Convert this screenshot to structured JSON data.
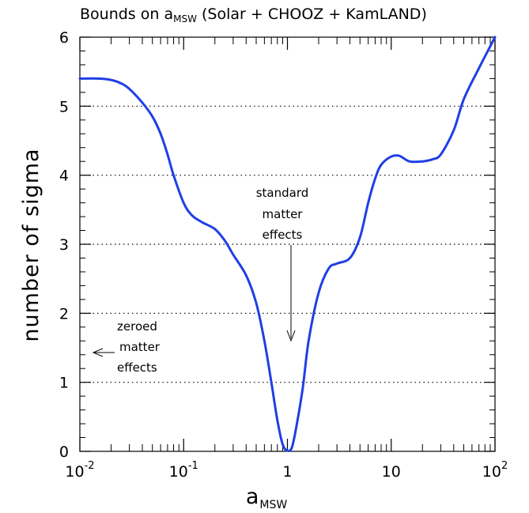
{
  "chart_data": {
    "type": "line",
    "title_prefix": "Bounds on ",
    "title_symbol": "a",
    "title_symbol_sub": "MSW",
    "title_suffix": " (Solar + CHOOZ + KamLAND)",
    "xlabel_main": "a",
    "xlabel_sub": "MSW",
    "ylabel": "number of sigma",
    "x_scale": "log",
    "xlim": [
      0.01,
      100
    ],
    "ylim": [
      0,
      6
    ],
    "x_ticks": [
      {
        "value": 0.01,
        "base": "10",
        "exp": "-2"
      },
      {
        "value": 0.1,
        "base": "10",
        "exp": "-1"
      },
      {
        "value": 1,
        "base": "1",
        "exp": ""
      },
      {
        "value": 10,
        "base": "10",
        "exp": ""
      },
      {
        "value": 100,
        "base": "10",
        "exp": "2"
      }
    ],
    "y_ticks": [
      0,
      1,
      2,
      3,
      4,
      5,
      6
    ],
    "grid": "horizontal dotted at 1,2,3,4,5",
    "series": [
      {
        "color": "#1f3fe6",
        "x": [
          0.01,
          0.015,
          0.02,
          0.025,
          0.03,
          0.04,
          0.05,
          0.06,
          0.07,
          0.08,
          0.1,
          0.12,
          0.15,
          0.2,
          0.25,
          0.3,
          0.4,
          0.5,
          0.6,
          0.7,
          0.8,
          0.9,
          1.0,
          1.1,
          1.2,
          1.4,
          1.6,
          2.0,
          2.5,
          3.0,
          4.0,
          5.0,
          6.0,
          7.0,
          8.0,
          10.0,
          12.0,
          15.0,
          20.0,
          25.0,
          30.0,
          40.0,
          50.0,
          70.0,
          100.0
        ],
        "y": [
          5.4,
          5.4,
          5.38,
          5.33,
          5.25,
          5.05,
          4.85,
          4.6,
          4.3,
          4.0,
          3.6,
          3.42,
          3.32,
          3.22,
          3.05,
          2.85,
          2.55,
          2.15,
          1.6,
          1.0,
          0.45,
          0.1,
          0.01,
          0.05,
          0.3,
          0.9,
          1.6,
          2.3,
          2.65,
          2.72,
          2.8,
          3.1,
          3.6,
          3.95,
          4.15,
          4.27,
          4.28,
          4.2,
          4.2,
          4.23,
          4.3,
          4.65,
          5.1,
          5.55,
          6.0
        ]
      }
    ],
    "annotations": {
      "standard": [
        "standard",
        "matter",
        "effects"
      ],
      "zeroed": [
        "zeroed",
        "matter",
        "effects"
      ]
    }
  }
}
